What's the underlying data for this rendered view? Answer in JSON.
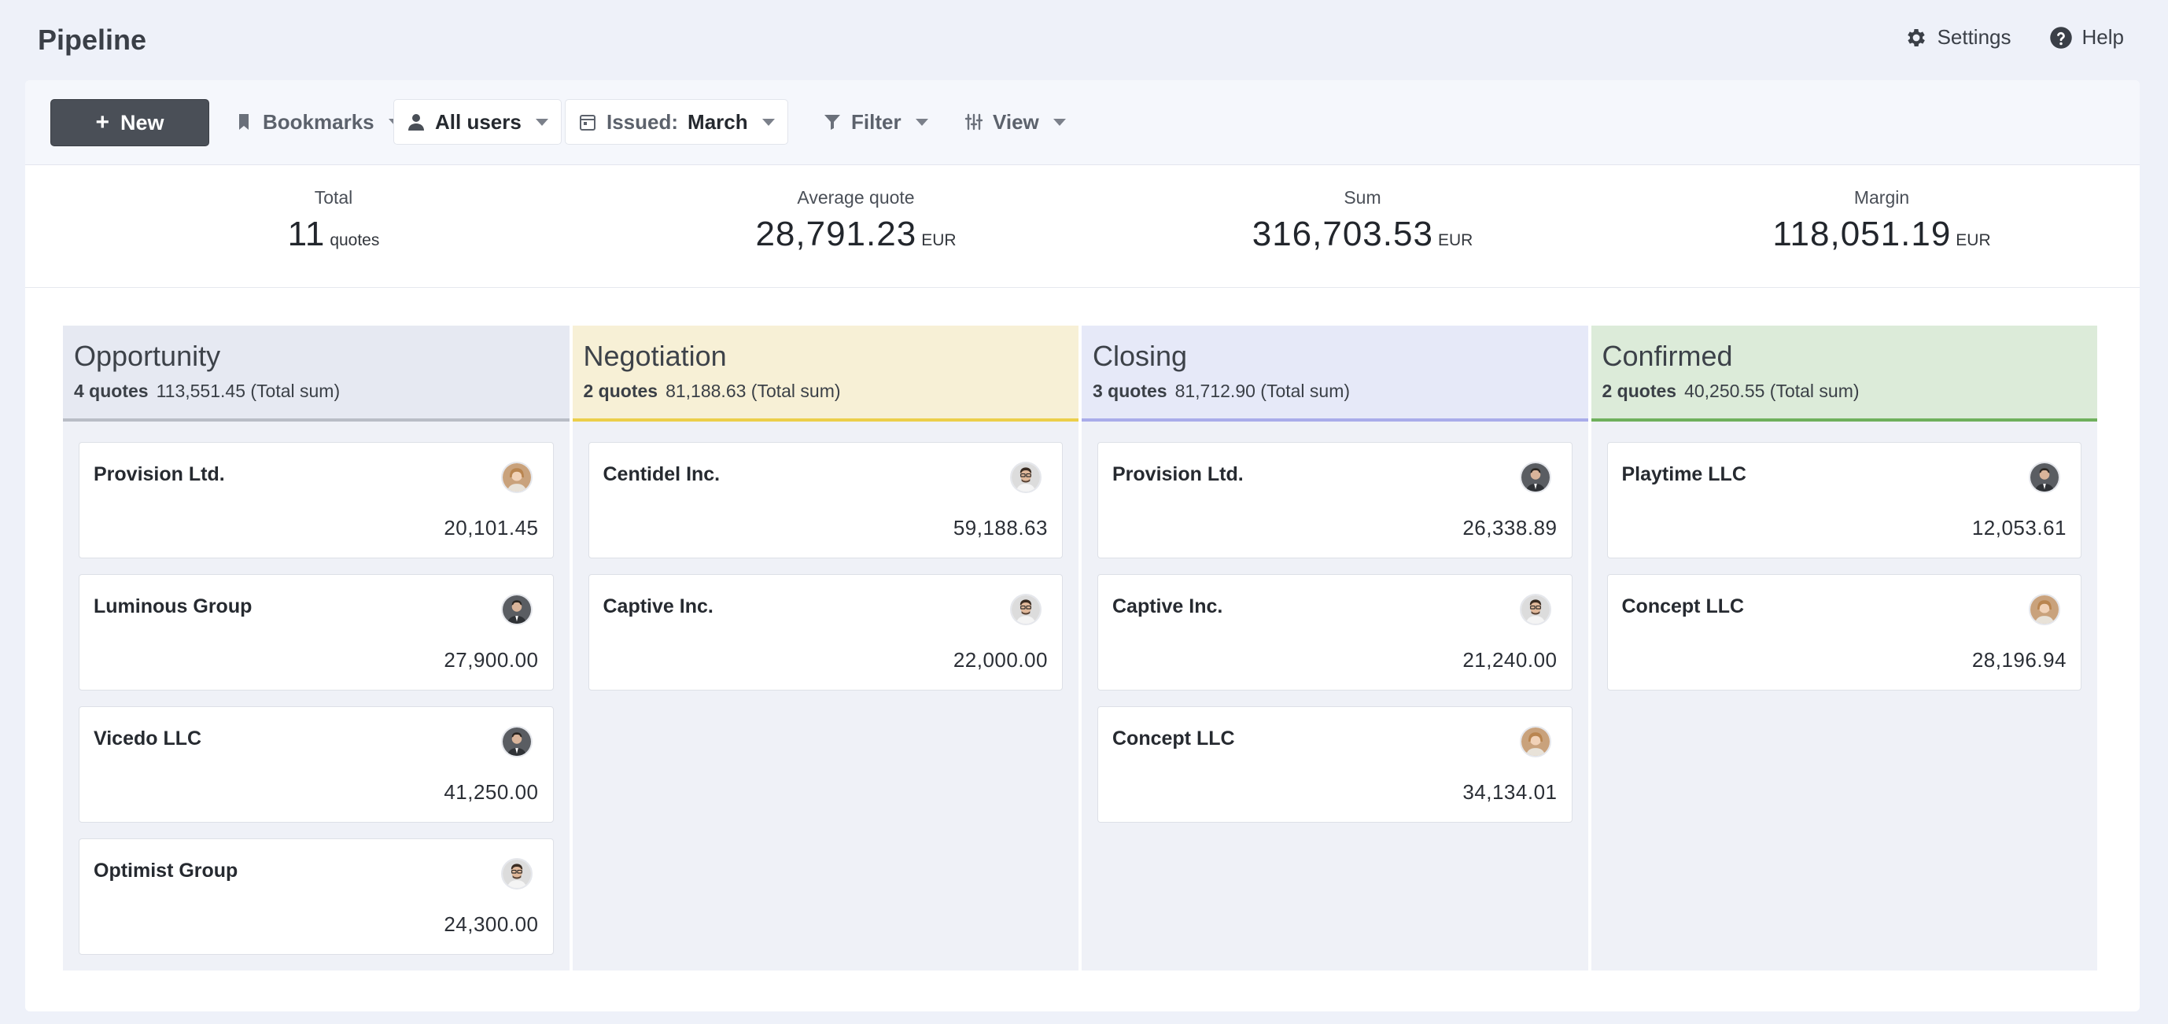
{
  "app": {
    "title": "Pipeline"
  },
  "top_actions": {
    "settings": "Settings",
    "help": "Help"
  },
  "toolbar": {
    "new_label": "New",
    "bookmarks_label": "Bookmarks",
    "users_label": "All users",
    "issued_prefix": "Issued:",
    "issued_value": "March",
    "filter_label": "Filter",
    "view_label": "View"
  },
  "stats": [
    {
      "label": "Total",
      "value": "11",
      "unit": "quotes"
    },
    {
      "label": "Average quote",
      "value": "28,791.23",
      "unit": "EUR"
    },
    {
      "label": "Sum",
      "value": "316,703.53",
      "unit": "EUR"
    },
    {
      "label": "Margin",
      "value": "118,051.19",
      "unit": "EUR"
    }
  ],
  "columns": [
    {
      "title": "Opportunity",
      "count": "4 quotes",
      "sum": "113,551.45 (Total sum)",
      "cards": [
        {
          "name": "Provision Ltd.",
          "amount": "20,101.45",
          "avatar": "woman-avatar"
        },
        {
          "name": "Luminous Group",
          "amount": "27,900.00",
          "avatar": "man-suit-avatar"
        },
        {
          "name": "Vicedo LLC",
          "amount": "41,250.00",
          "avatar": "man-suit-avatar"
        },
        {
          "name": "Optimist Group",
          "amount": "24,300.00",
          "avatar": "man-glasses-avatar"
        }
      ]
    },
    {
      "title": "Negotiation",
      "count": "2 quotes",
      "sum": "81,188.63 (Total sum)",
      "cards": [
        {
          "name": "Centidel Inc.",
          "amount": "59,188.63",
          "avatar": "man-glasses-avatar"
        },
        {
          "name": "Captive Inc.",
          "amount": "22,000.00",
          "avatar": "man-glasses-avatar"
        }
      ]
    },
    {
      "title": "Closing",
      "count": "3 quotes",
      "sum": "81,712.90 (Total sum)",
      "cards": [
        {
          "name": "Provision Ltd.",
          "amount": "26,338.89",
          "avatar": "man-suit-avatar"
        },
        {
          "name": "Captive Inc.",
          "amount": "21,240.00",
          "avatar": "man-glasses-avatar"
        },
        {
          "name": "Concept LLC",
          "amount": "34,134.01",
          "avatar": "woman-avatar"
        }
      ]
    },
    {
      "title": "Confirmed",
      "count": "2 quotes",
      "sum": "40,250.55 (Total sum)",
      "cards": [
        {
          "name": "Playtime LLC",
          "amount": "12,053.61",
          "avatar": "man-suit-avatar"
        },
        {
          "name": "Concept LLC",
          "amount": "28,196.94",
          "avatar": "woman-avatar"
        }
      ]
    }
  ]
}
